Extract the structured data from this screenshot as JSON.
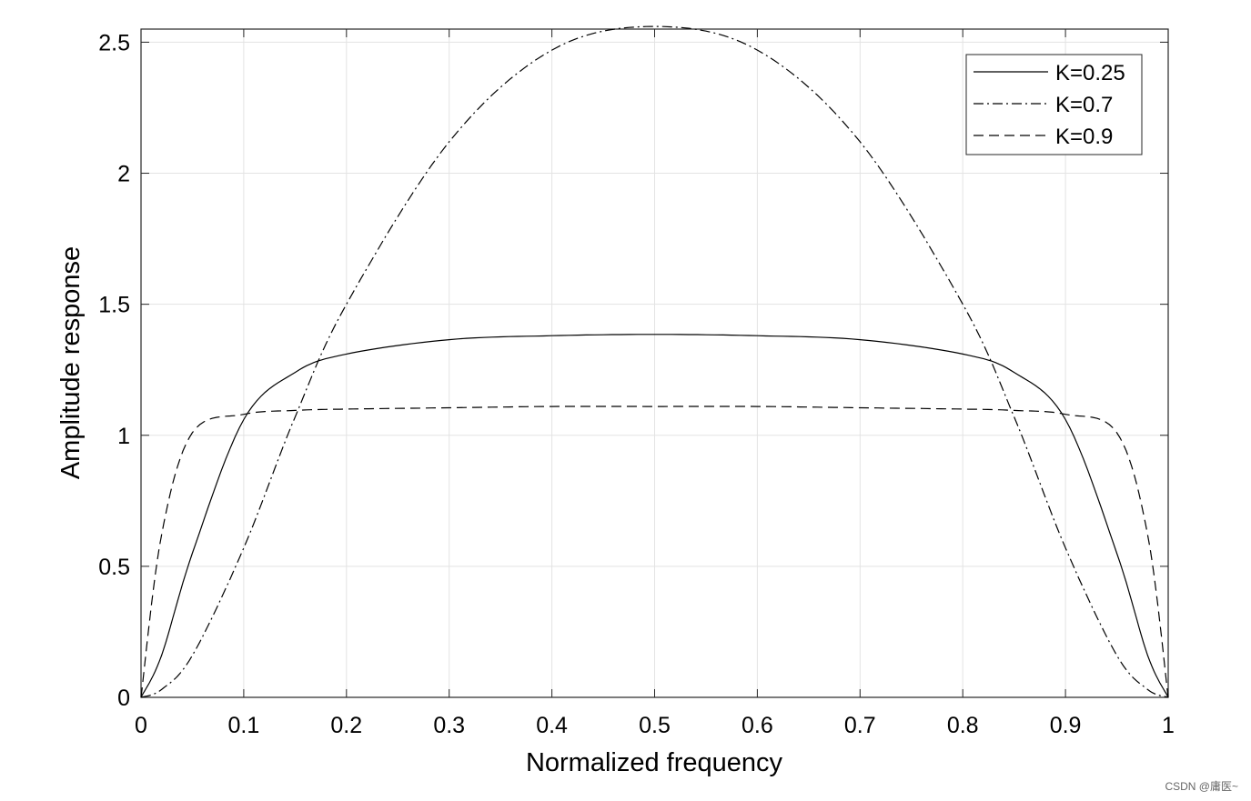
{
  "chart_data": {
    "type": "line",
    "xlabel": "Normalized frequency",
    "ylabel": "Amplitude response",
    "xlim": [
      0,
      1
    ],
    "ylim": [
      0,
      2.55
    ],
    "xticks": [
      "0",
      "0.1",
      "0.2",
      "0.3",
      "0.4",
      "0.5",
      "0.6",
      "0.7",
      "0.8",
      "0.9",
      "1"
    ],
    "yticks": [
      "0",
      "0.5",
      "1",
      "1.5",
      "2",
      "2.5"
    ],
    "grid": true,
    "legend_position": "top-right",
    "x": [
      0,
      0.02,
      0.05,
      0.1,
      0.15,
      0.2,
      0.3,
      0.4,
      0.5,
      0.6,
      0.7,
      0.8,
      0.85,
      0.9,
      0.95,
      0.98,
      1
    ],
    "series": [
      {
        "name": "K=0.25",
        "style": "solid",
        "values": [
          0,
          0.16,
          0.55,
          1.06,
          1.24,
          1.31,
          1.365,
          1.38,
          1.385,
          1.38,
          1.365,
          1.31,
          1.24,
          1.06,
          0.55,
          0.16,
          0
        ]
      },
      {
        "name": "K=0.7",
        "style": "dashdot",
        "values": [
          0,
          0.03,
          0.16,
          0.57,
          1.07,
          1.5,
          2.12,
          2.47,
          2.56,
          2.47,
          2.12,
          1.5,
          1.07,
          0.57,
          0.16,
          0.03,
          0
        ]
      },
      {
        "name": "K=0.9",
        "style": "dashed",
        "values": [
          0,
          0.62,
          1.01,
          1.08,
          1.095,
          1.1,
          1.105,
          1.11,
          1.11,
          1.11,
          1.105,
          1.1,
          1.095,
          1.08,
          1.01,
          0.62,
          0
        ]
      }
    ]
  },
  "watermark": "CSDN @庸医~"
}
